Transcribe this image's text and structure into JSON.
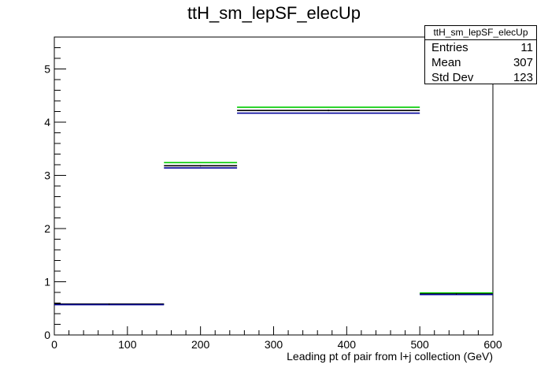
{
  "chart_data": {
    "type": "histogram",
    "title": "ttH_sm_lepSF_elecUp",
    "xlabel": "Leading pt of pair from l+j collection (GeV)",
    "ylabel": "",
    "xlim": [
      0,
      600
    ],
    "ylim": [
      0,
      5.6
    ],
    "x_ticks": [
      0,
      100,
      200,
      300,
      400,
      500,
      600
    ],
    "y_ticks": [
      0,
      1,
      2,
      3,
      4,
      5
    ],
    "grid": false,
    "bins": [
      {
        "low": 0,
        "high": 150
      },
      {
        "low": 150,
        "high": 250
      },
      {
        "low": 250,
        "high": 500
      },
      {
        "low": 500,
        "high": 600
      }
    ],
    "series": [
      {
        "color": "#00cc00",
        "values": [
          0.58,
          3.24,
          4.28,
          0.79
        ]
      },
      {
        "color": "#000000",
        "values": [
          0.58,
          3.18,
          4.22,
          0.77
        ]
      },
      {
        "color": "#000099",
        "values": [
          0.57,
          3.14,
          4.17,
          0.76
        ]
      }
    ],
    "stats_box": {
      "name": "ttH_sm_lepSF_elecUp",
      "rows": [
        {
          "label": "Entries",
          "value": "11"
        },
        {
          "label": "Mean",
          "value": "307"
        },
        {
          "label": "Std Dev",
          "value": "123"
        }
      ]
    }
  }
}
